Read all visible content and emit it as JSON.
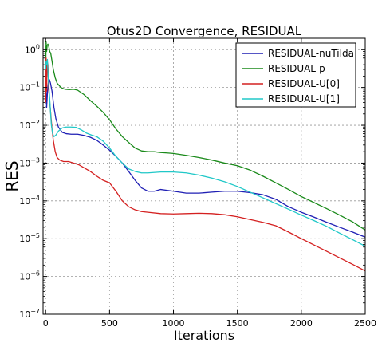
{
  "chart_data": {
    "type": "line",
    "title": "Otus2D Convergence, RESIDUAL",
    "xlabel": "Iterations",
    "ylabel": "RES",
    "xlim": [
      -20,
      2500
    ],
    "ylim": [
      1e-07,
      2
    ],
    "yscale": "log",
    "grid": true,
    "legend_position": "top-right",
    "x_ticks": [
      0,
      500,
      1000,
      1500,
      2000,
      2500
    ],
    "x_tick_labels": [
      "0",
      "500",
      "1000",
      "1500",
      "2000",
      "2500"
    ],
    "y_ticks": [
      1e-07,
      1e-06,
      1e-05,
      0.0001,
      0.001,
      0.01,
      0.1,
      1
    ],
    "y_tick_labels": [
      {
        "base": "10",
        "exp": "−7"
      },
      {
        "base": "10",
        "exp": "−6"
      },
      {
        "base": "10",
        "exp": "−5"
      },
      {
        "base": "10",
        "exp": "−4"
      },
      {
        "base": "10",
        "exp": "−3"
      },
      {
        "base": "10",
        "exp": "−2"
      },
      {
        "base": "10",
        "exp": "−1"
      },
      {
        "base": "10",
        "exp": "0"
      }
    ],
    "series": [
      {
        "name": "RESIDUAL-nuTilda",
        "color": "#1f1fb4",
        "points": [
          [
            1,
            0.05
          ],
          [
            4,
            0.1
          ],
          [
            8,
            0.03
          ],
          [
            15,
            0.08
          ],
          [
            22,
            0.14
          ],
          [
            30,
            0.16
          ],
          [
            38,
            0.13
          ],
          [
            50,
            0.08
          ],
          [
            65,
            0.03
          ],
          [
            80,
            0.015
          ],
          [
            100,
            0.009
          ],
          [
            130,
            0.0065
          ],
          [
            160,
            0.006
          ],
          [
            200,
            0.0058
          ],
          [
            250,
            0.0058
          ],
          [
            300,
            0.0054
          ],
          [
            350,
            0.0048
          ],
          [
            400,
            0.004
          ],
          [
            450,
            0.003
          ],
          [
            500,
            0.0022
          ],
          [
            550,
            0.0015
          ],
          [
            600,
            0.001
          ],
          [
            650,
            0.0006
          ],
          [
            700,
            0.00035
          ],
          [
            750,
            0.00022
          ],
          [
            800,
            0.00018
          ],
          [
            850,
            0.00018
          ],
          [
            900,
            0.0002
          ],
          [
            950,
            0.00019
          ],
          [
            1000,
            0.00018
          ],
          [
            1100,
            0.00016
          ],
          [
            1200,
            0.00016
          ],
          [
            1300,
            0.00017
          ],
          [
            1400,
            0.00018
          ],
          [
            1500,
            0.00018
          ],
          [
            1600,
            0.000165
          ],
          [
            1700,
            0.000145
          ],
          [
            1800,
            0.00011
          ],
          [
            1900,
            7e-05
          ],
          [
            2000,
            5e-05
          ],
          [
            2100,
            3.7e-05
          ],
          [
            2200,
            2.7e-05
          ],
          [
            2300,
            2e-05
          ],
          [
            2400,
            1.5e-05
          ],
          [
            2500,
            1.1e-05
          ]
        ]
      },
      {
        "name": "RESIDUAL-p",
        "color": "#1a8a1a",
        "points": [
          [
            1,
            0.4
          ],
          [
            4,
            1.6
          ],
          [
            8,
            0.9
          ],
          [
            12,
            1.3
          ],
          [
            18,
            1.4
          ],
          [
            25,
            1.2
          ],
          [
            32,
            0.9
          ],
          [
            40,
            0.8
          ],
          [
            50,
            0.5
          ],
          [
            60,
            0.3
          ],
          [
            75,
            0.18
          ],
          [
            90,
            0.13
          ],
          [
            120,
            0.1
          ],
          [
            150,
            0.09
          ],
          [
            180,
            0.088
          ],
          [
            220,
            0.09
          ],
          [
            250,
            0.085
          ],
          [
            300,
            0.065
          ],
          [
            350,
            0.045
          ],
          [
            400,
            0.032
          ],
          [
            450,
            0.022
          ],
          [
            500,
            0.014
          ],
          [
            550,
            0.008
          ],
          [
            600,
            0.005
          ],
          [
            650,
            0.0035
          ],
          [
            700,
            0.0025
          ],
          [
            750,
            0.0021
          ],
          [
            800,
            0.002
          ],
          [
            850,
            0.002
          ],
          [
            900,
            0.0019
          ],
          [
            950,
            0.00185
          ],
          [
            1000,
            0.0018
          ],
          [
            1100,
            0.0016
          ],
          [
            1200,
            0.0014
          ],
          [
            1300,
            0.0012
          ],
          [
            1400,
            0.001
          ],
          [
            1500,
            0.00085
          ],
          [
            1600,
            0.00065
          ],
          [
            1700,
            0.00045
          ],
          [
            1800,
            0.0003
          ],
          [
            1900,
            0.0002
          ],
          [
            2000,
            0.00013
          ],
          [
            2100,
            9e-05
          ],
          [
            2200,
            6.2e-05
          ],
          [
            2300,
            4.2e-05
          ],
          [
            2400,
            2.8e-05
          ],
          [
            2500,
            1.7e-05
          ]
        ]
      },
      {
        "name": "RESIDUAL-U[0]",
        "color": "#d42020",
        "points": [
          [
            1,
            0.04
          ],
          [
            4,
            0.6
          ],
          [
            8,
            0.08
          ],
          [
            12,
            0.5
          ],
          [
            18,
            0.4
          ],
          [
            24,
            0.1
          ],
          [
            30,
            0.05
          ],
          [
            40,
            0.02
          ],
          [
            50,
            0.008
          ],
          [
            60,
            0.004
          ],
          [
            75,
            0.002
          ],
          [
            90,
            0.0014
          ],
          [
            110,
            0.0012
          ],
          [
            140,
            0.0011
          ],
          [
            180,
            0.0011
          ],
          [
            220,
            0.001
          ],
          [
            260,
            0.0009
          ],
          [
            300,
            0.00075
          ],
          [
            350,
            0.0006
          ],
          [
            400,
            0.00045
          ],
          [
            450,
            0.00035
          ],
          [
            500,
            0.0003
          ],
          [
            550,
            0.00018
          ],
          [
            600,
            0.0001
          ],
          [
            650,
            7e-05
          ],
          [
            700,
            5.8e-05
          ],
          [
            750,
            5.2e-05
          ],
          [
            800,
            5e-05
          ],
          [
            900,
            4.6e-05
          ],
          [
            1000,
            4.5e-05
          ],
          [
            1100,
            4.6e-05
          ],
          [
            1200,
            4.7e-05
          ],
          [
            1300,
            4.6e-05
          ],
          [
            1400,
            4.3e-05
          ],
          [
            1500,
            3.8e-05
          ],
          [
            1600,
            3.2e-05
          ],
          [
            1700,
            2.7e-05
          ],
          [
            1800,
            2.2e-05
          ],
          [
            1900,
            1.5e-05
          ],
          [
            2000,
            1e-05
          ],
          [
            2100,
            6.8e-06
          ],
          [
            2200,
            4.6e-06
          ],
          [
            2300,
            3.1e-06
          ],
          [
            2400,
            2.1e-06
          ],
          [
            2500,
            1.4e-06
          ]
        ]
      },
      {
        "name": "RESIDUAL-U[1]",
        "color": "#20c8c8",
        "points": [
          [
            1,
            0.3
          ],
          [
            4,
            0.5
          ],
          [
            8,
            0.4
          ],
          [
            14,
            0.55
          ],
          [
            20,
            0.2
          ],
          [
            28,
            0.08
          ],
          [
            36,
            0.03
          ],
          [
            45,
            0.01
          ],
          [
            55,
            0.006
          ],
          [
            65,
            0.005
          ],
          [
            80,
            0.0055
          ],
          [
            100,
            0.007
          ],
          [
            130,
            0.0085
          ],
          [
            160,
            0.009
          ],
          [
            200,
            0.009
          ],
          [
            240,
            0.0088
          ],
          [
            280,
            0.0075
          ],
          [
            320,
            0.0062
          ],
          [
            360,
            0.0055
          ],
          [
            400,
            0.005
          ],
          [
            450,
            0.0038
          ],
          [
            500,
            0.0025
          ],
          [
            550,
            0.0015
          ],
          [
            600,
            0.001
          ],
          [
            650,
            0.0007
          ],
          [
            700,
            0.0006
          ],
          [
            750,
            0.00055
          ],
          [
            800,
            0.00055
          ],
          [
            900,
            0.00058
          ],
          [
            1000,
            0.00058
          ],
          [
            1100,
            0.00055
          ],
          [
            1200,
            0.00048
          ],
          [
            1300,
            0.0004
          ],
          [
            1400,
            0.00032
          ],
          [
            1500,
            0.00024
          ],
          [
            1600,
            0.00017
          ],
          [
            1700,
            0.00012
          ],
          [
            1800,
            8.5e-05
          ],
          [
            1900,
            6e-05
          ],
          [
            2000,
            4.2e-05
          ],
          [
            2100,
            3e-05
          ],
          [
            2200,
            2.1e-05
          ],
          [
            2300,
            1.4e-05
          ],
          [
            2400,
            9.5e-06
          ],
          [
            2500,
            6.3e-06
          ]
        ]
      }
    ]
  }
}
